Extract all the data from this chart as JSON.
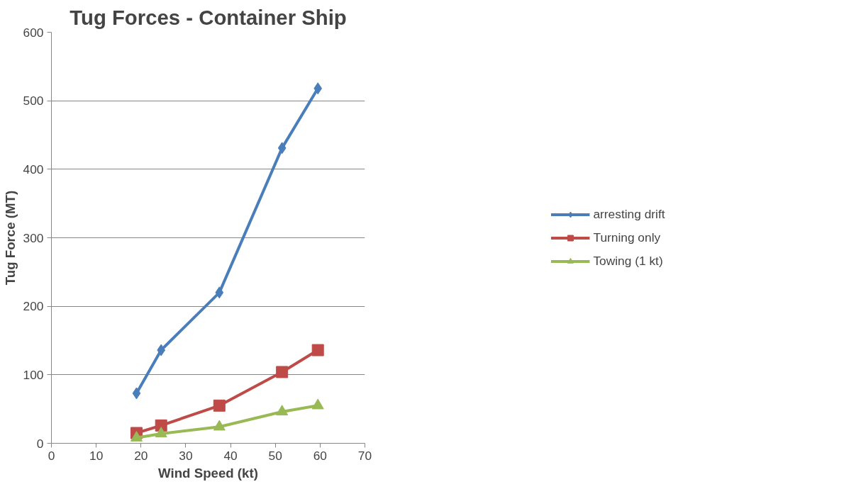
{
  "chart_data": {
    "type": "line",
    "title": "Tug Forces - Container Ship",
    "xlabel": "Wind Speed (kt)",
    "ylabel": "Tug Force (MT)",
    "xlim": [
      0,
      70
    ],
    "xticks": [
      0,
      10,
      20,
      30,
      40,
      50,
      60,
      70
    ],
    "ylim": [
      0,
      600
    ],
    "yticks": [
      0,
      100,
      200,
      300,
      400,
      500,
      600
    ],
    "grid": "y",
    "legend": "right",
    "series": [
      {
        "name": "arresting drift",
        "color": "#4a7ebb",
        "marker": "diamond",
        "x": [
          19,
          24.5,
          37.5,
          51.5,
          59.5
        ],
        "values": [
          73,
          136,
          220,
          431,
          518
        ]
      },
      {
        "name": "Turning only",
        "color": "#be4b48",
        "marker": "square",
        "x": [
          19,
          24.5,
          37.5,
          51.5,
          59.5
        ],
        "values": [
          15,
          26,
          55,
          104,
          136
        ]
      },
      {
        "name": "Towing (1 kt)",
        "color": "#98b954",
        "marker": "triangle",
        "x": [
          19,
          24.5,
          37.5,
          51.5,
          59.5
        ],
        "values": [
          8,
          14,
          24,
          46,
          55
        ]
      }
    ]
  }
}
